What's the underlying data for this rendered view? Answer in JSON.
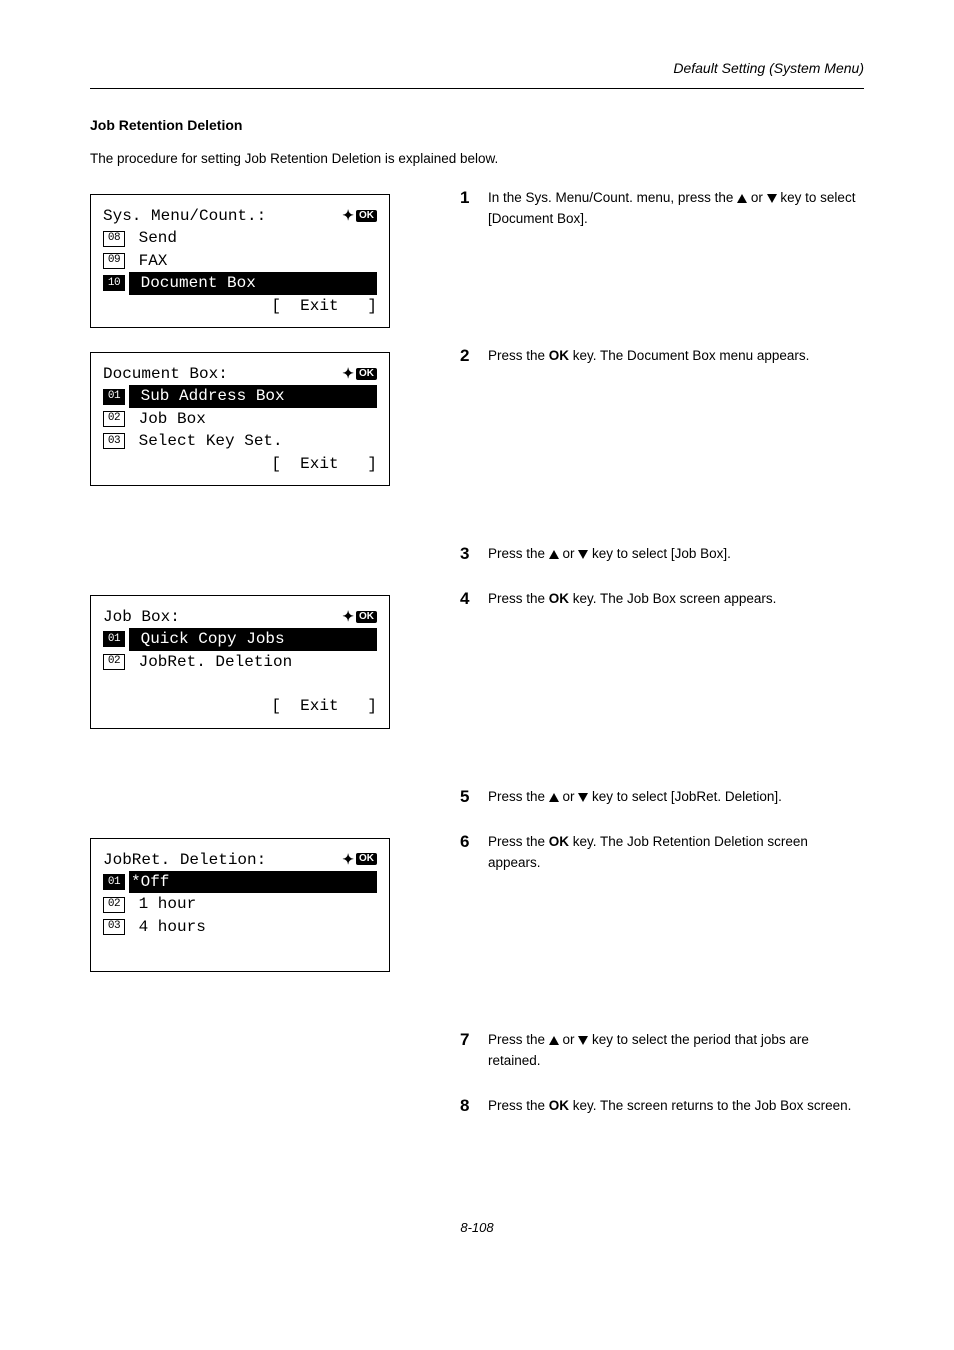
{
  "header": {
    "title": "Default Setting (System Menu)"
  },
  "section": {
    "title": "Job Retention Deletion"
  },
  "intro": "The procedure for setting Job Retention Deletion is explained below.",
  "steps": {
    "s1": {
      "n": "1",
      "pre": "In the Sys. Menu/Count. menu, press the ",
      "post": " key to select [Document Box]."
    },
    "s2": {
      "n": "2",
      "pre": "Press the ",
      "mid": "OK",
      "post": " key. The Document Box menu appears."
    },
    "s3": {
      "n": "3",
      "pre": "Press the ",
      "post": " key to select [Job Box]."
    },
    "s4": {
      "n": "4",
      "pre": "Press the ",
      "mid": "OK",
      "post": " key. The Job Box screen appears."
    },
    "s5": {
      "n": "5",
      "pre": "Press the ",
      "post": " key to select [JobRet. Deletion]."
    },
    "s6": {
      "n": "6",
      "pre": "Press the ",
      "mid": "OK",
      "post": " key. The Job Retention Deletion screen appears."
    },
    "s7": {
      "n": "7",
      "pre": "Press the ",
      "post": " key to select the period that jobs are retained."
    },
    "s8": {
      "n": "8",
      "pre": "Press the ",
      "mid": "OK",
      "post": " key. The screen returns to the Job Box screen."
    }
  },
  "or": " or ",
  "lcd1": {
    "title": "Sys. Menu/Count.:",
    "r1_num": "08",
    "r1": " Send",
    "r2_num": "09",
    "r2": " FAX",
    "r3_num": "10",
    "r3": " Document Box",
    "exit": "[  Exit   ]"
  },
  "lcd2": {
    "title": "Document Box:",
    "r1_num": "01",
    "r1": " Sub Address Box",
    "r2_num": "02",
    "r2": " Job Box",
    "r3_num": "03",
    "r3": " Select Key Set.",
    "exit": "[  Exit   ]"
  },
  "lcd3": {
    "title": "Job Box:",
    "r1_num": "01",
    "r1": " Quick Copy Jobs",
    "r2_num": "02",
    "r2": " JobRet. Deletion",
    "exit": "[  Exit   ]"
  },
  "lcd4": {
    "title": "JobRet. Deletion:",
    "r1_num": "01",
    "r1": "*Off",
    "r2_num": "02",
    "r2": " 1 hour",
    "r3_num": "03",
    "r3": " 4 hours"
  },
  "ok": "OK",
  "footer": "8-108"
}
